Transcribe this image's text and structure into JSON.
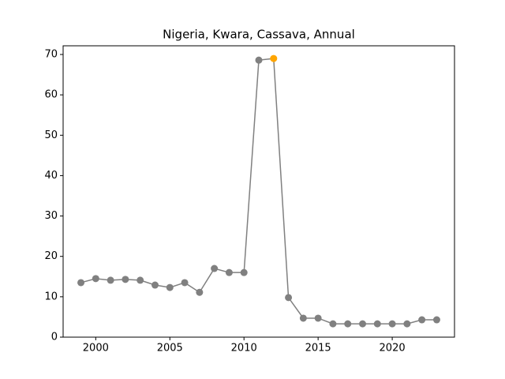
{
  "chart_data": {
    "type": "line",
    "title": "Nigeria, Kwara, Cassava, Annual",
    "x": [
      1999,
      2000,
      2001,
      2002,
      2003,
      2004,
      2005,
      2006,
      2007,
      2008,
      2009,
      2010,
      2011,
      2012,
      2013,
      2014,
      2015,
      2016,
      2017,
      2018,
      2019,
      2020,
      2021,
      2022,
      2023
    ],
    "series": [
      {
        "color": "#808080",
        "values": [
          13.5,
          14.5,
          14.1,
          14.3,
          14.1,
          12.9,
          12.3,
          13.5,
          11.1,
          17.0,
          16.0,
          16.0,
          68.6,
          69.0,
          9.8,
          4.7,
          4.7,
          3.3,
          3.3,
          3.3,
          3.3,
          3.3,
          3.3,
          4.3,
          4.3
        ]
      }
    ],
    "highlight_x": 2012,
    "highlight_color": "#ffa500",
    "xlim": [
      1997.8,
      2024.2
    ],
    "xticks": [
      2000,
      2005,
      2010,
      2015,
      2020
    ],
    "ylim": [
      0,
      72.15
    ],
    "yticks": [
      0,
      10,
      20,
      30,
      40,
      50,
      60,
      70
    ],
    "grid": false
  }
}
